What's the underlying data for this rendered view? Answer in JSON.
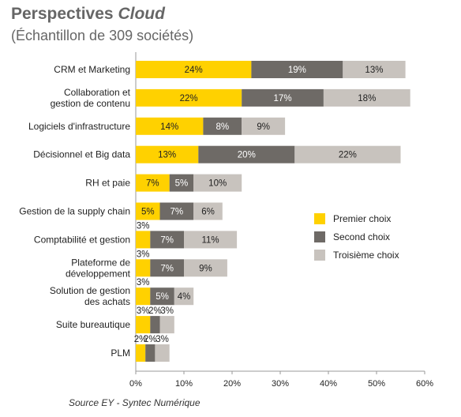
{
  "header": {
    "title_prefix": "Perspectives",
    "title_emphasis": "Cloud",
    "subtitle": "(Échantillon de 309 sociétés)"
  },
  "footer": {
    "source": "Source EY - Syntec Numérique"
  },
  "colors": {
    "premier": "#FFD100",
    "second": "#6E6A66",
    "troisieme": "#C8C3BE",
    "axis": "#999999"
  },
  "chart_data": {
    "type": "bar",
    "orientation": "horizontal",
    "stacked": true,
    "categories": [
      [
        "CRM et Marketing"
      ],
      [
        "Collaboration et",
        "gestion de contenu"
      ],
      [
        "Logiciels d'infrastructure"
      ],
      [
        "Décisionnel et Big data"
      ],
      [
        "RH et paie"
      ],
      [
        "Gestion de la supply chain"
      ],
      [
        "Comptabilité et gestion"
      ],
      [
        "Plateforme de",
        "développement"
      ],
      [
        "Solution de gestion",
        "des achats"
      ],
      [
        "Suite bureautique"
      ],
      [
        "PLM"
      ]
    ],
    "series": [
      {
        "name": "Premier choix",
        "color_key": "premier",
        "values": [
          24,
          22,
          14,
          13,
          7,
          5,
          3,
          3,
          3,
          3,
          2
        ]
      },
      {
        "name": "Second choix",
        "color_key": "second",
        "values": [
          19,
          17,
          8,
          20,
          5,
          7,
          7,
          7,
          5,
          2,
          2
        ]
      },
      {
        "name": "Troisième choix",
        "color_key": "troisieme",
        "values": [
          13,
          18,
          9,
          22,
          10,
          6,
          11,
          9,
          4,
          3,
          3
        ]
      }
    ],
    "xlim": [
      0,
      60
    ],
    "xticks": [
      "0%",
      "10%",
      "20%",
      "30%",
      "40%",
      "50%",
      "60%"
    ],
    "value_suffix": "%",
    "grid": false,
    "legend_position": "right"
  }
}
